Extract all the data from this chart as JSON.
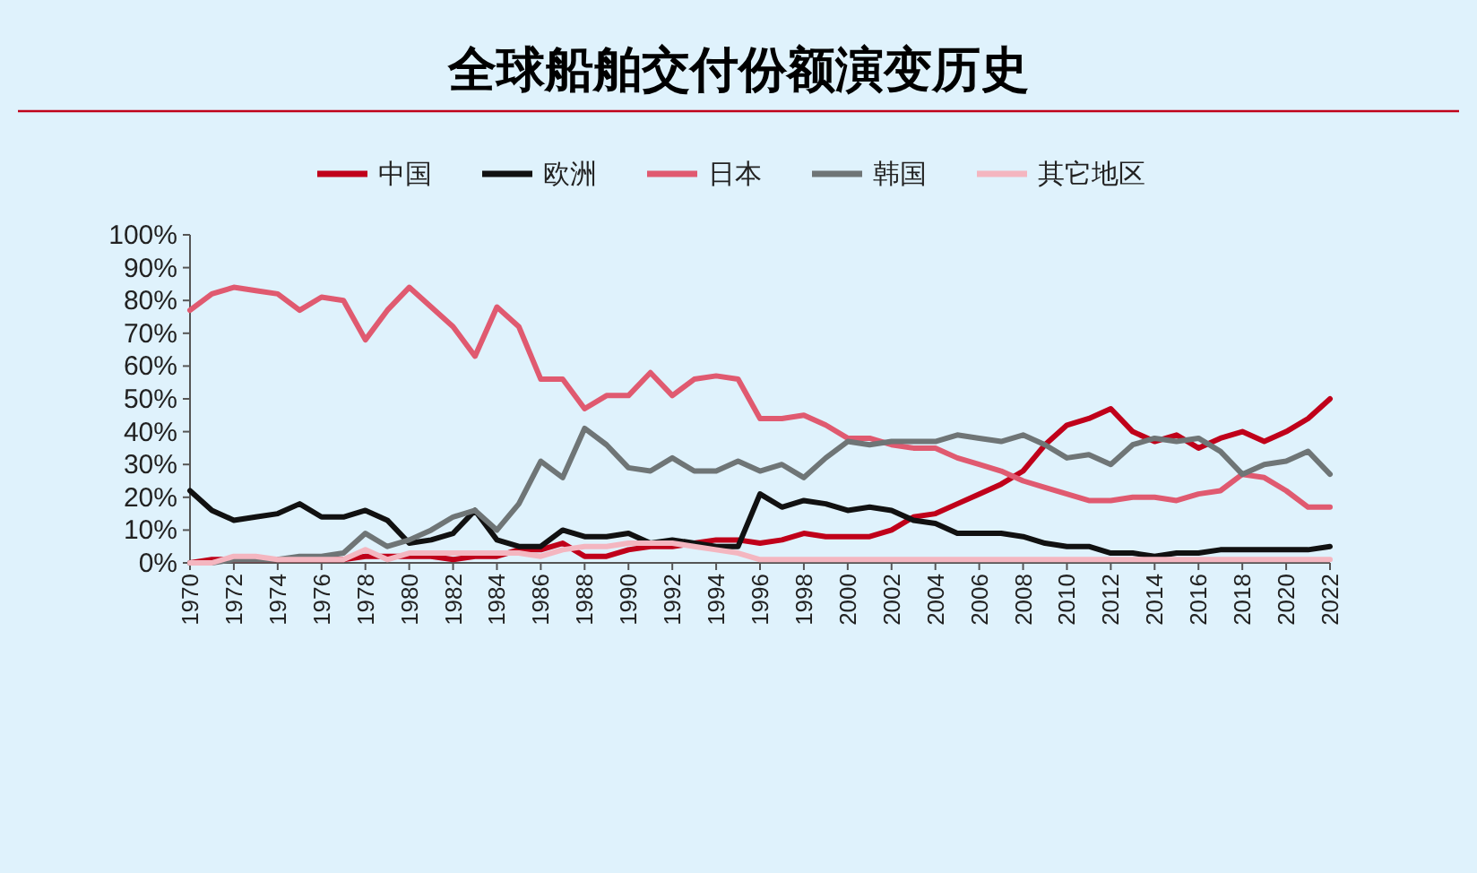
{
  "chart_data": {
    "type": "line",
    "title": "全球船舶交付份额演变历史",
    "x": [
      1970,
      1971,
      1972,
      1973,
      1974,
      1975,
      1976,
      1977,
      1978,
      1979,
      1980,
      1981,
      1982,
      1983,
      1984,
      1985,
      1986,
      1987,
      1988,
      1989,
      1990,
      1991,
      1992,
      1993,
      1994,
      1995,
      1996,
      1997,
      1998,
      1999,
      2000,
      2001,
      2002,
      2003,
      2004,
      2005,
      2006,
      2007,
      2008,
      2009,
      2010,
      2011,
      2012,
      2013,
      2014,
      2015,
      2016,
      2017,
      2018,
      2019,
      2020,
      2021,
      2022
    ],
    "xlim": [
      1970,
      2022
    ],
    "xticks": [
      1970,
      1972,
      1974,
      1976,
      1978,
      1980,
      1982,
      1984,
      1986,
      1988,
      1990,
      1992,
      1994,
      1996,
      1998,
      2000,
      2002,
      2004,
      2006,
      2008,
      2010,
      2012,
      2014,
      2016,
      2018,
      2020,
      2022
    ],
    "ylim": [
      0,
      100
    ],
    "yticks": [
      {
        "value": 0,
        "label": "0%"
      },
      {
        "value": 10,
        "label": "10%"
      },
      {
        "value": 20,
        "label": "20%"
      },
      {
        "value": 30,
        "label": "30%"
      },
      {
        "value": 40,
        "label": "40%"
      },
      {
        "value": 50,
        "label": "50%"
      },
      {
        "value": 60,
        "label": "60%"
      },
      {
        "value": 70,
        "label": "70%"
      },
      {
        "value": 80,
        "label": "80%"
      },
      {
        "value": 90,
        "label": "90%"
      },
      {
        "value": 100,
        "label": "100%"
      }
    ],
    "legend": "top",
    "series": [
      {
        "name": "中国",
        "color": "#c0001a",
        "values": [
          0,
          1,
          1,
          1,
          1,
          1,
          1,
          1,
          2,
          2,
          2,
          2,
          1,
          2,
          2,
          4,
          4,
          6,
          2,
          2,
          4,
          5,
          5,
          6,
          7,
          7,
          6,
          7,
          9,
          8,
          8,
          8,
          10,
          14,
          15,
          18,
          21,
          24,
          28,
          36,
          42,
          44,
          47,
          40,
          37,
          39,
          35,
          38,
          40,
          37,
          40,
          44,
          50
        ]
      },
      {
        "name": "欧洲",
        "color": "#111111",
        "values": [
          22,
          16,
          13,
          14,
          15,
          18,
          14,
          14,
          16,
          13,
          6,
          7,
          9,
          16,
          7,
          5,
          5,
          10,
          8,
          8,
          9,
          6,
          7,
          6,
          5,
          5,
          21,
          17,
          19,
          18,
          16,
          17,
          16,
          13,
          12,
          9,
          9,
          9,
          8,
          6,
          5,
          5,
          3,
          3,
          2,
          3,
          3,
          4,
          4,
          4,
          4,
          4,
          5
        ]
      },
      {
        "name": "日本",
        "color": "#e05a70",
        "values": [
          77,
          82,
          84,
          83,
          82,
          77,
          81,
          80,
          68,
          77,
          84,
          78,
          72,
          63,
          78,
          72,
          56,
          56,
          47,
          51,
          51,
          58,
          51,
          56,
          57,
          56,
          44,
          44,
          45,
          42,
          38,
          38,
          36,
          35,
          35,
          32,
          30,
          28,
          25,
          23,
          21,
          19,
          19,
          20,
          20,
          19,
          21,
          22,
          27,
          26,
          22,
          17,
          17
        ]
      },
      {
        "name": "韩国",
        "color": "#6f7576",
        "values": [
          0,
          0,
          1,
          1,
          1,
          2,
          2,
          3,
          9,
          5,
          7,
          10,
          14,
          16,
          10,
          18,
          31,
          26,
          41,
          36,
          29,
          28,
          32,
          28,
          28,
          31,
          28,
          30,
          26,
          32,
          37,
          36,
          37,
          37,
          37,
          39,
          38,
          37,
          39,
          36,
          32,
          33,
          30,
          36,
          38,
          37,
          38,
          34,
          27,
          30,
          31,
          34,
          27
        ]
      },
      {
        "name": "其它地区",
        "color": "#f4b6c0",
        "values": [
          0,
          0,
          2,
          2,
          1,
          1,
          1,
          1,
          4,
          1,
          3,
          3,
          3,
          3,
          3,
          3,
          2,
          4,
          5,
          5,
          6,
          6,
          6,
          5,
          4,
          3,
          1,
          1,
          1,
          1,
          1,
          1,
          1,
          1,
          1,
          1,
          1,
          1,
          1,
          1,
          1,
          1,
          1,
          1,
          1,
          1,
          1,
          1,
          1,
          1,
          1,
          1,
          1
        ]
      }
    ]
  }
}
